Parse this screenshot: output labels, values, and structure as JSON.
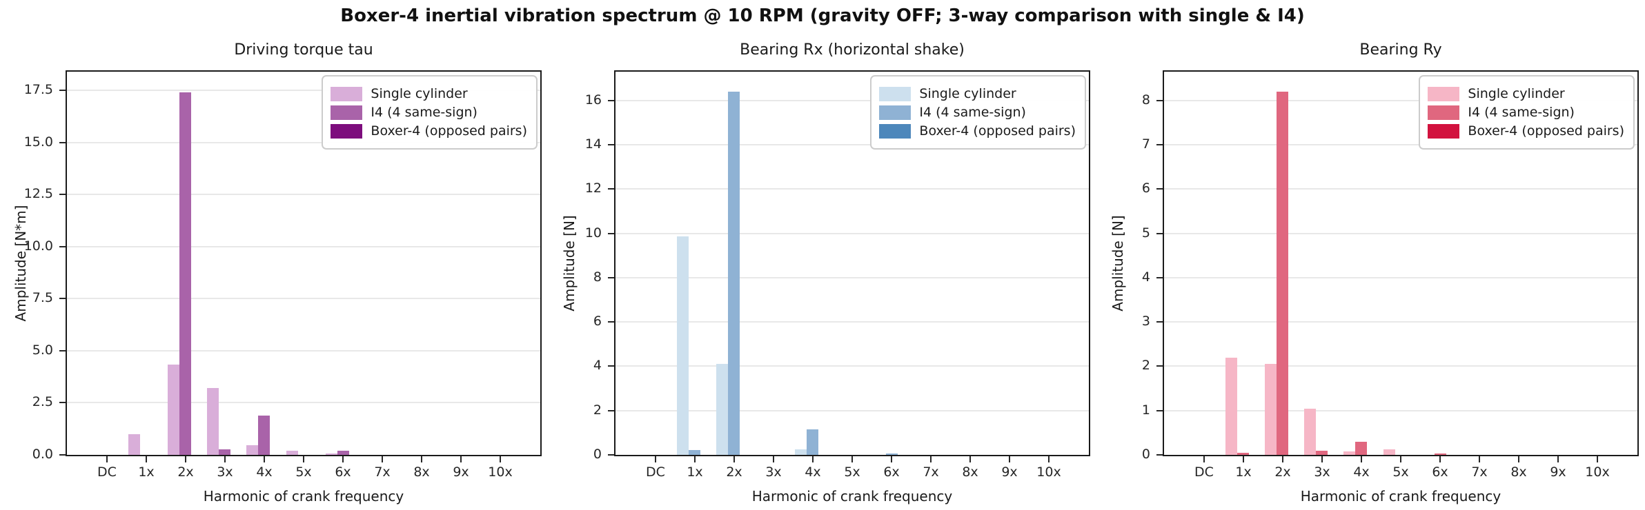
{
  "figure_title": "Boxer-4 inertial vibration spectrum @ 10 RPM (gravity OFF; 3-way comparison with single & I4)",
  "chart_data": [
    {
      "type": "bar",
      "title": "Driving torque tau",
      "xlabel": "Harmonic of crank frequency",
      "ylabel": "Amplitude [N*m]",
      "categories": [
        "DC",
        "1x",
        "2x",
        "3x",
        "4x",
        "5x",
        "6x",
        "7x",
        "8x",
        "9x",
        "10x"
      ],
      "ylim": [
        0,
        18.4
      ],
      "yticks": [
        0,
        2.5,
        5,
        7.5,
        10,
        12.5,
        15,
        17.5
      ],
      "ytick_labels": [
        "0.0",
        "2.5",
        "5.0",
        "7.5",
        "10.0",
        "12.5",
        "15.0",
        "17.5"
      ],
      "grid": true,
      "legend_position": "upper right",
      "series": [
        {
          "name": "Single cylinder",
          "color": "#d9aed9",
          "values": [
            0,
            1.0,
            4.35,
            3.2,
            0.45,
            0.2,
            0.05,
            0,
            0,
            0,
            0
          ]
        },
        {
          "name": "I4 (4 same-sign)",
          "color": "#a963a9",
          "values": [
            0,
            0,
            17.4,
            0.25,
            1.9,
            0,
            0.2,
            0,
            0,
            0,
            0
          ]
        },
        {
          "name": "Boxer-4 (opposed pairs)",
          "color": "#7d0d7d",
          "values": [
            0,
            0,
            0,
            0,
            0,
            0,
            0,
            0,
            0,
            0,
            0
          ]
        }
      ]
    },
    {
      "type": "bar",
      "title": "Bearing Rx (horizontal shake)",
      "xlabel": "Harmonic of crank frequency",
      "ylabel": "Amplitude [N]",
      "categories": [
        "DC",
        "1x",
        "2x",
        "3x",
        "4x",
        "5x",
        "6x",
        "7x",
        "8x",
        "9x",
        "10x"
      ],
      "ylim": [
        0,
        17.3
      ],
      "yticks": [
        0,
        2,
        4,
        6,
        8,
        10,
        12,
        14,
        16
      ],
      "ytick_labels": [
        "0",
        "2",
        "4",
        "6",
        "8",
        "10",
        "12",
        "14",
        "16"
      ],
      "grid": true,
      "legend_position": "upper right",
      "series": [
        {
          "name": "Single cylinder",
          "color": "#cde0ee",
          "values": [
            0,
            9.85,
            4.1,
            0,
            0.25,
            0,
            0,
            0,
            0,
            0,
            0
          ]
        },
        {
          "name": "I4 (4 same-sign)",
          "color": "#8fb2d4",
          "values": [
            0,
            0.22,
            16.4,
            0,
            1.15,
            0,
            0.07,
            0,
            0,
            0,
            0
          ]
        },
        {
          "name": "Boxer-4 (opposed pairs)",
          "color": "#4d87bb",
          "values": [
            0,
            0,
            0,
            0,
            0,
            0,
            0,
            0,
            0,
            0,
            0
          ]
        }
      ]
    },
    {
      "type": "bar",
      "title": "Bearing Ry",
      "xlabel": "Harmonic of crank frequency",
      "ylabel": "Amplitude [N]",
      "categories": [
        "DC",
        "1x",
        "2x",
        "3x",
        "4x",
        "5x",
        "6x",
        "7x",
        "8x",
        "9x",
        "10x"
      ],
      "ylim": [
        0,
        8.65
      ],
      "yticks": [
        0,
        1,
        2,
        3,
        4,
        5,
        6,
        7,
        8
      ],
      "ytick_labels": [
        "0",
        "1",
        "2",
        "3",
        "4",
        "5",
        "6",
        "7",
        "8"
      ],
      "grid": true,
      "legend_position": "upper right",
      "series": [
        {
          "name": "Single cylinder",
          "color": "#f6b6c6",
          "values": [
            0,
            2.2,
            2.05,
            1.05,
            0.08,
            0.12,
            0,
            0,
            0,
            0,
            0
          ]
        },
        {
          "name": "I4 (4 same-sign)",
          "color": "#e0677f",
          "values": [
            0,
            0.05,
            8.2,
            0.1,
            0.3,
            0,
            0.03,
            0,
            0,
            0,
            0
          ]
        },
        {
          "name": "Boxer-4 (opposed pairs)",
          "color": "#d2123e",
          "values": [
            0,
            0,
            0,
            0,
            0,
            0,
            0,
            0,
            0,
            0,
            0
          ]
        }
      ]
    }
  ]
}
